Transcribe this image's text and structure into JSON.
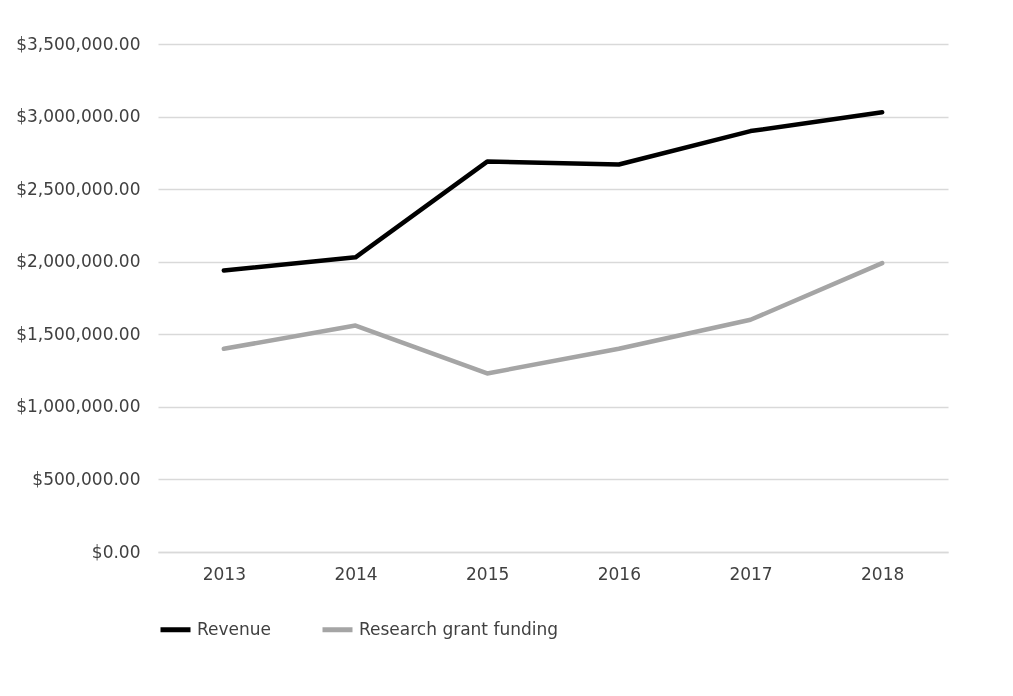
{
  "chart_data": {
    "type": "line",
    "categories": [
      "2013",
      "2014",
      "2015",
      "2016",
      "2017",
      "2018"
    ],
    "series": [
      {
        "name": "Revenue",
        "color": "#000000",
        "values": [
          1940000,
          2030000,
          2690000,
          2670000,
          2900000,
          3030000
        ]
      },
      {
        "name": "Research grant funding",
        "color": "#a5a5a5",
        "values": [
          1400000,
          1560000,
          1230000,
          1400000,
          1600000,
          1990000
        ]
      }
    ],
    "ylim": [
      0,
      3500000
    ],
    "yticks": [
      {
        "value": 0,
        "label": "$0.00"
      },
      {
        "value": 500000,
        "label": "$500,000.00"
      },
      {
        "value": 1000000,
        "label": "$1,000,000.00"
      },
      {
        "value": 1500000,
        "label": "$1,500,000.00"
      },
      {
        "value": 2000000,
        "label": "$2,000,000.00"
      },
      {
        "value": 2500000,
        "label": "$2,500,000.00"
      },
      {
        "value": 3000000,
        "label": "$3,000,000.00"
      },
      {
        "value": 3500000,
        "label": "$3,500,000.00"
      }
    ],
    "grid": "y",
    "legend": "bottom",
    "marker": "none",
    "line_style": "solid"
  }
}
